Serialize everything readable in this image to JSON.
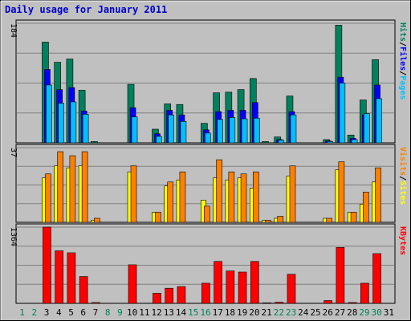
{
  "chart_data": [
    {
      "type": "bar",
      "title": "Daily usage for January 2011",
      "panel": "hits-files-pages",
      "categories": [
        "1",
        "2",
        "3",
        "4",
        "5",
        "6",
        "7",
        "8",
        "9",
        "10",
        "11",
        "12",
        "13",
        "14",
        "15",
        "16",
        "17",
        "18",
        "19",
        "20",
        "21",
        "22",
        "23",
        "24",
        "25",
        "26",
        "27",
        "28",
        "29",
        "30",
        "31"
      ],
      "weekend_days": [
        "1",
        "2",
        "8",
        "9",
        "15",
        "16",
        "22",
        "23",
        "29",
        "30"
      ],
      "ymax_label": "184",
      "ylim": [
        0,
        184
      ],
      "grid": true,
      "legend": "right-vertical",
      "series": [
        {
          "name": "Hits",
          "color": "#00805c",
          "values": [
            0,
            0,
            155,
            124,
            129,
            81,
            2,
            0,
            0,
            90,
            0,
            21,
            60,
            59,
            0,
            30,
            77,
            78,
            82,
            99,
            2,
            9,
            72,
            0,
            0,
            5,
            181,
            12,
            66,
            128,
            0
          ]
        },
        {
          "name": "Files",
          "color": "#0000ff",
          "values": [
            0,
            0,
            113,
            82,
            85,
            49,
            0,
            0,
            0,
            54,
            0,
            14,
            50,
            43,
            0,
            20,
            48,
            50,
            50,
            62,
            0,
            5,
            48,
            0,
            0,
            3,
            101,
            7,
            43,
            89,
            0
          ]
        },
        {
          "name": "Pages",
          "color": "#00c0ff",
          "values": [
            0,
            0,
            89,
            61,
            63,
            44,
            0,
            0,
            0,
            40,
            0,
            10,
            43,
            33,
            0,
            15,
            36,
            39,
            37,
            38,
            0,
            4,
            43,
            0,
            0,
            2,
            92,
            5,
            45,
            68,
            0
          ]
        }
      ]
    },
    {
      "type": "bar",
      "panel": "sites-visits",
      "categories": [
        "1",
        "2",
        "3",
        "4",
        "5",
        "6",
        "7",
        "8",
        "9",
        "10",
        "11",
        "12",
        "13",
        "14",
        "15",
        "16",
        "17",
        "18",
        "19",
        "20",
        "21",
        "22",
        "23",
        "24",
        "25",
        "26",
        "27",
        "28",
        "29",
        "30",
        "31"
      ],
      "ymax_label": "37",
      "ylim": [
        0,
        37
      ],
      "grid": true,
      "legend": "right-vertical",
      "series": [
        {
          "name": "Visits",
          "color": "#ff8000",
          "values": [
            0,
            0,
            24,
            35,
            33,
            35,
            2,
            0,
            0,
            28,
            0,
            5,
            20,
            25,
            0,
            8,
            31,
            25,
            24,
            25,
            1,
            3,
            28,
            0,
            0,
            2,
            30,
            5,
            15,
            27,
            0
          ]
        },
        {
          "name": "Sites",
          "color": "#ffff00",
          "values": [
            0,
            0,
            22,
            28,
            27,
            28,
            1,
            0,
            0,
            25,
            0,
            5,
            18,
            21,
            0,
            11,
            22,
            21,
            22,
            17,
            1,
            2,
            23,
            0,
            0,
            2,
            26,
            5,
            9,
            20,
            0
          ]
        }
      ]
    },
    {
      "type": "bar",
      "panel": "kbytes",
      "categories": [
        "1",
        "2",
        "3",
        "4",
        "5",
        "6",
        "7",
        "8",
        "9",
        "10",
        "11",
        "12",
        "13",
        "14",
        "15",
        "16",
        "17",
        "18",
        "19",
        "20",
        "21",
        "22",
        "23",
        "24",
        "25",
        "26",
        "27",
        "28",
        "29",
        "30",
        "31"
      ],
      "ymax_label": "1364",
      "ylim": [
        0,
        1364
      ],
      "grid": true,
      "legend": "right-vertical",
      "series": [
        {
          "name": "KBytes",
          "color": "#ff0000",
          "values": [
            0,
            0,
            1364,
            940,
            905,
            480,
            15,
            0,
            0,
            690,
            0,
            180,
            270,
            300,
            0,
            360,
            750,
            580,
            560,
            750,
            10,
            20,
            520,
            0,
            0,
            50,
            1000,
            15,
            360,
            890,
            0
          ]
        }
      ]
    }
  ]
}
